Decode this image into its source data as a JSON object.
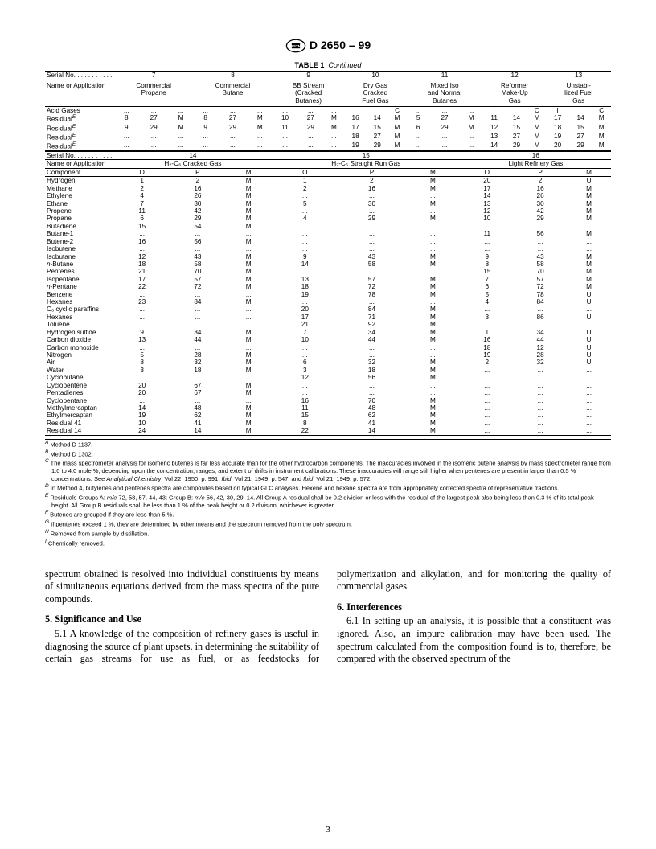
{
  "header": "D 2650 – 99",
  "table_title_label": "TABLE 1",
  "table_title_rest": "Continued",
  "serial_label": "Serial No. . . . . . . . . . .",
  "name_app_label": "Name or Application",
  "component_label": "Component",
  "top": {
    "serials": [
      "7",
      "8",
      "9",
      "10",
      "11",
      "12",
      "13"
    ],
    "apps": [
      "Commercial\nPropane",
      "Commercial\nButane",
      "BB Stream\n(Cracked\nButanes)",
      "Dry Gas\nCracked\nFuel Gas",
      "Mixed Iso\nand Normal\nButanes",
      "Reformer\nMake-Up\nGas",
      "Unstabi-\nlized Fuel\nGas"
    ],
    "ipm_labels": [
      "I",
      "",
      "C"
    ],
    "rows": [
      {
        "label": "Acid Gases",
        "sup": "",
        "cells": [
          [
            "...",
            "...",
            "..."
          ],
          [
            "...",
            "...",
            "..."
          ],
          [
            "...",
            "...",
            "..."
          ],
          [
            "",
            "",
            "C"
          ],
          [
            "...",
            "...",
            "..."
          ],
          [
            "I",
            "",
            "C"
          ],
          [
            "I",
            "",
            "C"
          ]
        ]
      },
      {
        "label": "Residual",
        "sup": "E",
        "cells": [
          [
            "8",
            "27",
            "M"
          ],
          [
            "8",
            "27",
            "M"
          ],
          [
            "10",
            "27",
            "M"
          ],
          [
            "16",
            "14",
            "M"
          ],
          [
            "5",
            "27",
            "M"
          ],
          [
            "11",
            "14",
            "M"
          ],
          [
            "17",
            "14",
            "M"
          ]
        ]
      },
      {
        "label": "Residual",
        "sup": "E",
        "cells": [
          [
            "9",
            "29",
            "M"
          ],
          [
            "9",
            "29",
            "M"
          ],
          [
            "11",
            "29",
            "M"
          ],
          [
            "17",
            "15",
            "M"
          ],
          [
            "6",
            "29",
            "M"
          ],
          [
            "12",
            "15",
            "M"
          ],
          [
            "18",
            "15",
            "M"
          ]
        ]
      },
      {
        "label": "Residual",
        "sup": "E",
        "cells": [
          [
            "...",
            "...",
            "..."
          ],
          [
            "...",
            "...",
            "..."
          ],
          [
            "...",
            "...",
            "..."
          ],
          [
            "18",
            "27",
            "M"
          ],
          [
            "...",
            "...",
            "..."
          ],
          [
            "13",
            "27",
            "M"
          ],
          [
            "19",
            "27",
            "M"
          ]
        ]
      },
      {
        "label": "Residual",
        "sup": "E",
        "cells": [
          [
            "...",
            "...",
            "..."
          ],
          [
            "...",
            "...",
            "..."
          ],
          [
            "...",
            "...",
            "..."
          ],
          [
            "19",
            "29",
            "M"
          ],
          [
            "...",
            "...",
            "..."
          ],
          [
            "14",
            "29",
            "M"
          ],
          [
            "20",
            "29",
            "M"
          ]
        ]
      }
    ]
  },
  "bottom": {
    "serials": [
      "14",
      "15",
      "16"
    ],
    "apps": [
      "H₂-C₆ Cracked Gas",
      "H₂-C₆ Straight Run Gas",
      "Light Refinery Gas"
    ],
    "opm_labels": [
      "O",
      "P",
      "M"
    ],
    "rows": [
      {
        "c": "Hydrogen",
        "d": [
          [
            "1",
            "2",
            "M"
          ],
          [
            "1",
            "2",
            "M"
          ],
          [
            "20",
            "2",
            "U"
          ]
        ]
      },
      {
        "c": "Methane",
        "d": [
          [
            "2",
            "16",
            "M"
          ],
          [
            "2",
            "16",
            "M"
          ],
          [
            "17",
            "16",
            "M"
          ]
        ]
      },
      {
        "c": "Ethylene",
        "d": [
          [
            "4",
            "26",
            "M"
          ],
          [
            "...",
            "...",
            "..."
          ],
          [
            "14",
            "26",
            "M"
          ]
        ]
      },
      {
        "c": "Ethane",
        "d": [
          [
            "7",
            "30",
            "M"
          ],
          [
            "5",
            "30",
            "M"
          ],
          [
            "13",
            "30",
            "M"
          ]
        ]
      },
      {
        "c": "Propene",
        "d": [
          [
            "11",
            "42",
            "M"
          ],
          [
            "...",
            "...",
            "..."
          ],
          [
            "12",
            "42",
            "M"
          ]
        ]
      },
      {
        "c": "Propane",
        "d": [
          [
            "6",
            "29",
            "M"
          ],
          [
            "4",
            "29",
            "M"
          ],
          [
            "10",
            "29",
            "M"
          ]
        ]
      },
      {
        "c": "Butadiene",
        "d": [
          [
            "15",
            "54",
            "M"
          ],
          [
            "...",
            "...",
            "..."
          ],
          [
            "...",
            "...",
            "..."
          ]
        ]
      },
      {
        "c": "Butane-1",
        "d": [
          [
            "...",
            "...",
            "..."
          ],
          [
            "...",
            "...",
            "..."
          ],
          [
            "11",
            "56",
            "M"
          ]
        ]
      },
      {
        "c": "Butene-2",
        "d": [
          [
            "16",
            "56",
            "M"
          ],
          [
            "...",
            "...",
            "..."
          ],
          [
            "...",
            "...",
            "..."
          ]
        ]
      },
      {
        "c": "Isobutene",
        "d": [
          [
            "...",
            "...",
            "..."
          ],
          [
            "...",
            "...",
            "..."
          ],
          [
            "...",
            "...",
            "..."
          ]
        ]
      },
      {
        "c": "Isobutane",
        "d": [
          [
            "12",
            "43",
            "M"
          ],
          [
            "9",
            "43",
            "M"
          ],
          [
            "9",
            "43",
            "M"
          ]
        ]
      },
      {
        "c": "n-Butane",
        "i": true,
        "d": [
          [
            "18",
            "58",
            "M"
          ],
          [
            "14",
            "58",
            "M"
          ],
          [
            "8",
            "58",
            "M"
          ]
        ]
      },
      {
        "c": "Pentenes",
        "d": [
          [
            "21",
            "70",
            "M"
          ],
          [
            "...",
            "...",
            "..."
          ],
          [
            "15",
            "70",
            "M"
          ]
        ]
      },
      {
        "c": "Isopentane",
        "d": [
          [
            "17",
            "57",
            "M"
          ],
          [
            "13",
            "57",
            "M"
          ],
          [
            "7",
            "57",
            "M"
          ]
        ]
      },
      {
        "c": "n-Pentane",
        "i": true,
        "d": [
          [
            "22",
            "72",
            "M"
          ],
          [
            "18",
            "72",
            "M"
          ],
          [
            "6",
            "72",
            "M"
          ]
        ]
      },
      {
        "c": "Benzene",
        "d": [
          [
            "...",
            "...",
            "..."
          ],
          [
            "19",
            "78",
            "M"
          ],
          [
            "5",
            "78",
            "U"
          ]
        ]
      },
      {
        "c": "Hexanes",
        "d": [
          [
            "23",
            "84",
            "M"
          ],
          [
            "...",
            "...",
            "..."
          ],
          [
            "4",
            "84",
            "U"
          ]
        ]
      },
      {
        "c": "C₆ cyclic paraffins",
        "d": [
          [
            "...",
            "...",
            "..."
          ],
          [
            "20",
            "84",
            "M"
          ],
          [
            "...",
            "...",
            "..."
          ]
        ]
      },
      {
        "c": "Hexanes",
        "d": [
          [
            "...",
            "...",
            "..."
          ],
          [
            "17",
            "71",
            "M"
          ],
          [
            "3",
            "86",
            "U"
          ]
        ]
      },
      {
        "c": "Toluene",
        "d": [
          [
            "...",
            "...",
            "..."
          ],
          [
            "21",
            "92",
            "M"
          ],
          [
            "...",
            "...",
            "..."
          ]
        ]
      },
      {
        "c": "Hydrogen sulfide",
        "d": [
          [
            "9",
            "34",
            "M"
          ],
          [
            "7",
            "34",
            "M"
          ],
          [
            "1",
            "34",
            "U"
          ]
        ]
      },
      {
        "c": "Carbon dioxide",
        "d": [
          [
            "13",
            "44",
            "M"
          ],
          [
            "10",
            "44",
            "M"
          ],
          [
            "16",
            "44",
            "U"
          ]
        ]
      },
      {
        "c": "Carbon monoxide",
        "d": [
          [
            "...",
            "...",
            "..."
          ],
          [
            "...",
            "...",
            "..."
          ],
          [
            "18",
            "12",
            "U"
          ]
        ]
      },
      {
        "c": "Nitrogen",
        "d": [
          [
            "5",
            "28",
            "M"
          ],
          [
            "...",
            "...",
            "..."
          ],
          [
            "19",
            "28",
            "U"
          ]
        ]
      },
      {
        "c": "Air",
        "d": [
          [
            "8",
            "32",
            "M"
          ],
          [
            "6",
            "32",
            "M"
          ],
          [
            "2",
            "32",
            "U"
          ]
        ]
      },
      {
        "c": "Water",
        "d": [
          [
            "3",
            "18",
            "M"
          ],
          [
            "3",
            "18",
            "M"
          ],
          [
            "...",
            "...",
            "..."
          ]
        ]
      },
      {
        "c": "Cyclobutane",
        "d": [
          [
            "...",
            "...",
            "..."
          ],
          [
            "12",
            "56",
            "M"
          ],
          [
            "...",
            "...",
            "..."
          ]
        ]
      },
      {
        "c": "Cyclopentene",
        "d": [
          [
            "20",
            "67",
            "M"
          ],
          [
            "...",
            "...",
            "..."
          ],
          [
            "...",
            "...",
            "..."
          ]
        ]
      },
      {
        "c": "Pentadienes",
        "d": [
          [
            "20",
            "67",
            "M"
          ],
          [
            "...",
            "...",
            "..."
          ],
          [
            "...",
            "...",
            "..."
          ]
        ]
      },
      {
        "c": "Cyclopentane",
        "d": [
          [
            "...",
            "...",
            "..."
          ],
          [
            "16",
            "70",
            "M"
          ],
          [
            "...",
            "...",
            "..."
          ]
        ]
      },
      {
        "c": "Methylmercaptan",
        "d": [
          [
            "14",
            "48",
            "M"
          ],
          [
            "11",
            "48",
            "M"
          ],
          [
            "...",
            "...",
            "..."
          ]
        ]
      },
      {
        "c": "Ethylmercaptan",
        "d": [
          [
            "19",
            "62",
            "M"
          ],
          [
            "15",
            "62",
            "M"
          ],
          [
            "...",
            "...",
            "..."
          ]
        ]
      },
      {
        "c": "Residual 41",
        "d": [
          [
            "10",
            "41",
            "M"
          ],
          [
            "8",
            "41",
            "M"
          ],
          [
            "...",
            "...",
            "..."
          ]
        ]
      },
      {
        "c": "Residual 14",
        "d": [
          [
            "24",
            "14",
            "M"
          ],
          [
            "22",
            "14",
            "M"
          ],
          [
            "...",
            "...",
            "..."
          ]
        ]
      }
    ]
  },
  "footnotes": [
    {
      "s": "A",
      "t": "Method D 1137."
    },
    {
      "s": "B",
      "t": "Method D 1302."
    },
    {
      "s": "C",
      "t": "The mass spectrometer analysis for isomeric butenes is far less accurate than for the other hydrocarbon components. The inaccuracies involved in the isomeric butene analysis by mass spectrometer range from 1.0 to 4.0 mole %, depending upon the concentration, ranges, and extent of drifts in instrument calibrations. These inaccuracies will range still higher when pentenes are present in larger than 0.5 % concentrations. See Analytical Chemistry, Vol 22, 1950, p. 991; Ibid, Vol 21, 1949, p. 547; and Ibid, Vol 21, 1949, p. 572."
    },
    {
      "s": "D",
      "t": "In Method 4, butylenes and pentenes spectra are composites based on typical GLC analyses. Hexene and hexane spectra are from appropriately corrected spectra of representative fractions."
    },
    {
      "s": "E",
      "t": "Residuals Groups A: m/e 72, 58, 57, 44, 43; Group B: m/e 56, 42, 30, 29, 14. All Group A residual shall be 0.2 division or less with the residual of the largest peak also being less than 0.3 % of its total peak height. All Group B residuals shall be less than 1 % of the peak height or 0.2 division, whichever is greater."
    },
    {
      "s": "F",
      "t": "Butenes are grouped if they are less than 5 %."
    },
    {
      "s": "G",
      "t": "If pentenes exceed 1 %, they are determined by other means and the spectrum removed from the poly spectrum."
    },
    {
      "s": "H",
      "t": "Removed from sample by distillation."
    },
    {
      "s": "I",
      "t": "Chemically removed."
    }
  ],
  "body": {
    "p1": "spectrum obtained is resolved into individual constituents by means of simultaneous equations derived from the mass spectra of the pure compounds.",
    "h5": "5. Significance and Use",
    "p51": "5.1 A knowledge of the composition of refinery gases is useful in diagnosing the source of plant upsets, in determining the suitability of certain gas streams for use as fuel, or as feedstocks for polymerization and alkylation, and for monitoring the quality of commercial gases.",
    "h6": "6. Interferences",
    "p61": "6.1 In setting up an analysis, it is possible that a constituent was ignored. Also, an impure calibration may have been used. The spectrum calculated from the composition found is to, therefore, be compared with the observed spectrum of the"
  },
  "pagenum": "3"
}
